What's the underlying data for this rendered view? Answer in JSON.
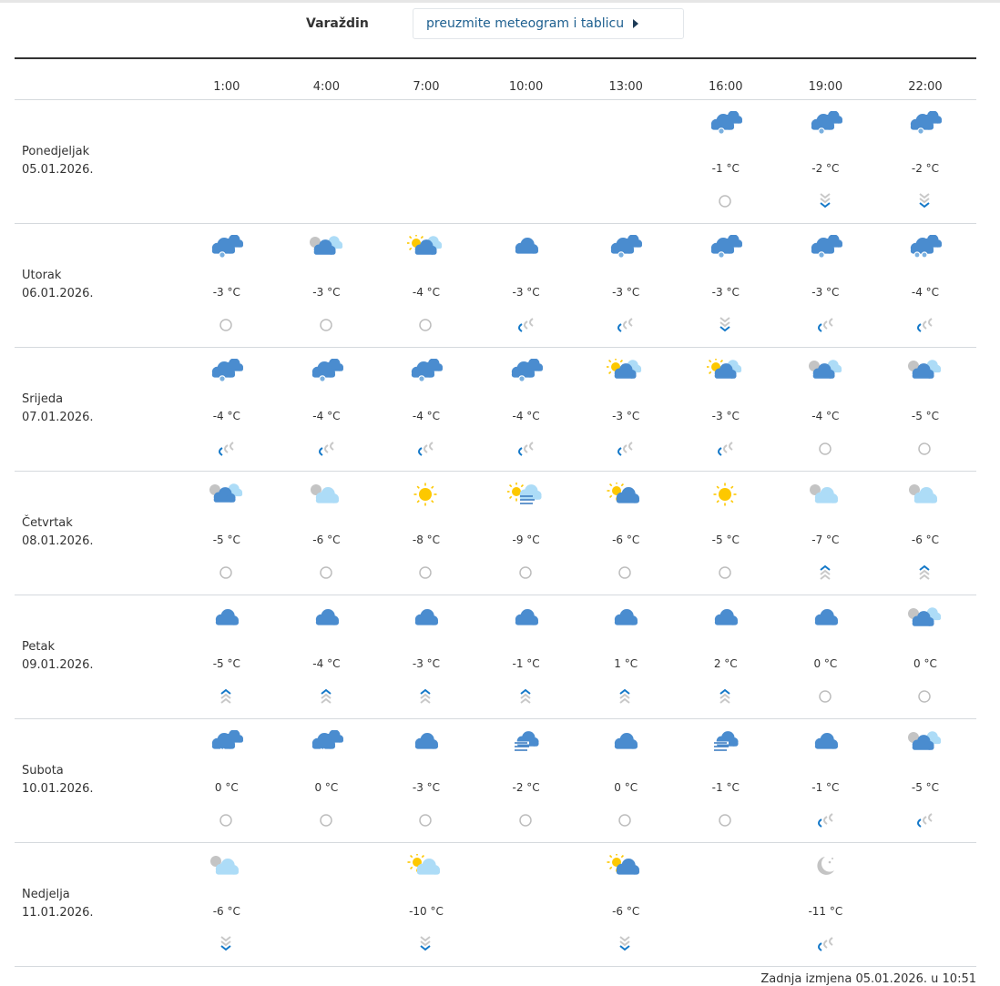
{
  "header": {
    "city": "Varaždin",
    "download_label": "preuzmite meteogram i tablicu"
  },
  "times": [
    "1:00",
    "4:00",
    "7:00",
    "10:00",
    "13:00",
    "16:00",
    "19:00",
    "22:00"
  ],
  "colors": {
    "cloud_dark": "#4a8ccf",
    "cloud_light": "#addcf7",
    "sun": "#fdc800",
    "moon": "#c4c4c4",
    "wind_accent": "#1478c8",
    "wind_gray": "#c8c8c8",
    "calm": "#bdbdbd"
  },
  "days": [
    {
      "name": "Ponedjeljak",
      "date": "05.01.2026.",
      "cells": [
        null,
        null,
        null,
        null,
        null,
        {
          "icon": "snow",
          "temp": "-1 °C",
          "wind": "calm"
        },
        {
          "icon": "snow",
          "temp": "-2 °C",
          "wind": "down"
        },
        {
          "icon": "snow",
          "temp": "-2 °C",
          "wind": "down"
        }
      ]
    },
    {
      "name": "Utorak",
      "date": "06.01.2026.",
      "cells": [
        {
          "icon": "snow",
          "temp": "-3 °C",
          "wind": "calm"
        },
        {
          "icon": "moon-cloud",
          "temp": "-3 °C",
          "wind": "calm"
        },
        {
          "icon": "sun-cloud",
          "temp": "-4 °C",
          "wind": "calm"
        },
        {
          "icon": "cloud",
          "temp": "-3 °C",
          "wind": "left"
        },
        {
          "icon": "snow",
          "temp": "-3 °C",
          "wind": "left"
        },
        {
          "icon": "snow",
          "temp": "-3 °C",
          "wind": "down"
        },
        {
          "icon": "snow",
          "temp": "-3 °C",
          "wind": "left"
        },
        {
          "icon": "snow-heavy",
          "temp": "-4 °C",
          "wind": "left"
        }
      ]
    },
    {
      "name": "Srijeda",
      "date": "07.01.2026.",
      "cells": [
        {
          "icon": "snow",
          "temp": "-4 °C",
          "wind": "left"
        },
        {
          "icon": "snow",
          "temp": "-4 °C",
          "wind": "left"
        },
        {
          "icon": "snow",
          "temp": "-4 °C",
          "wind": "left"
        },
        {
          "icon": "snow",
          "temp": "-4 °C",
          "wind": "left"
        },
        {
          "icon": "sun-cloud",
          "temp": "-3 °C",
          "wind": "left"
        },
        {
          "icon": "sun-cloud",
          "temp": "-3 °C",
          "wind": "left"
        },
        {
          "icon": "moon-cloud",
          "temp": "-4 °C",
          "wind": "calm"
        },
        {
          "icon": "moon-cloud",
          "temp": "-5 °C",
          "wind": "calm"
        }
      ]
    },
    {
      "name": "Četvrtak",
      "date": "08.01.2026.",
      "cells": [
        {
          "icon": "moon-cloud",
          "temp": "-5 °C",
          "wind": "calm"
        },
        {
          "icon": "moon-light-cloud",
          "temp": "-6 °C",
          "wind": "calm"
        },
        {
          "icon": "sun",
          "temp": "-8 °C",
          "wind": "calm"
        },
        {
          "icon": "sun-fog",
          "temp": "-9 °C",
          "wind": "calm"
        },
        {
          "icon": "sun-dark-cloud",
          "temp": "-6 °C",
          "wind": "calm"
        },
        {
          "icon": "sun",
          "temp": "-5 °C",
          "wind": "calm"
        },
        {
          "icon": "moon-light-cloud",
          "temp": "-7 °C",
          "wind": "up"
        },
        {
          "icon": "moon-light-cloud",
          "temp": "-6 °C",
          "wind": "up"
        }
      ]
    },
    {
      "name": "Petak",
      "date": "09.01.2026.",
      "cells": [
        {
          "icon": "cloud",
          "temp": "-5 °C",
          "wind": "up"
        },
        {
          "icon": "cloud",
          "temp": "-4 °C",
          "wind": "up"
        },
        {
          "icon": "cloud",
          "temp": "-3 °C",
          "wind": "up"
        },
        {
          "icon": "cloud",
          "temp": "-1 °C",
          "wind": "up"
        },
        {
          "icon": "cloud",
          "temp": "1 °C",
          "wind": "up"
        },
        {
          "icon": "cloud",
          "temp": "2 °C",
          "wind": "up"
        },
        {
          "icon": "cloud",
          "temp": "0 °C",
          "wind": "calm"
        },
        {
          "icon": "moon-cloud",
          "temp": "0 °C",
          "wind": "calm"
        }
      ]
    },
    {
      "name": "Subota",
      "date": "10.01.2026.",
      "cells": [
        {
          "icon": "rain",
          "temp": "0 °C",
          "wind": "calm"
        },
        {
          "icon": "rain",
          "temp": "0 °C",
          "wind": "calm"
        },
        {
          "icon": "cloud",
          "temp": "-3 °C",
          "wind": "calm"
        },
        {
          "icon": "fog-cloud",
          "temp": "-2 °C",
          "wind": "calm"
        },
        {
          "icon": "cloud",
          "temp": "0 °C",
          "wind": "calm"
        },
        {
          "icon": "fog-cloud",
          "temp": "-1 °C",
          "wind": "calm"
        },
        {
          "icon": "cloud",
          "temp": "-1 °C",
          "wind": "left"
        },
        {
          "icon": "moon-cloud",
          "temp": "-5 °C",
          "wind": "left"
        }
      ]
    },
    {
      "name": "Nedjelja",
      "date": "11.01.2026.",
      "cells": [
        {
          "icon": "moon-light-cloud",
          "temp": "-6 °C",
          "wind": "down"
        },
        null,
        {
          "icon": "sun-light-cloud",
          "temp": "-10 °C",
          "wind": "down"
        },
        null,
        {
          "icon": "sun-dark-cloud",
          "temp": "-6 °C",
          "wind": "down"
        },
        null,
        {
          "icon": "moon-stars",
          "temp": "-11 °C",
          "wind": "left"
        },
        null
      ]
    }
  ],
  "footer": {
    "last_modified": "Zadnja izmjena 05.01.2026. u 10:51"
  }
}
